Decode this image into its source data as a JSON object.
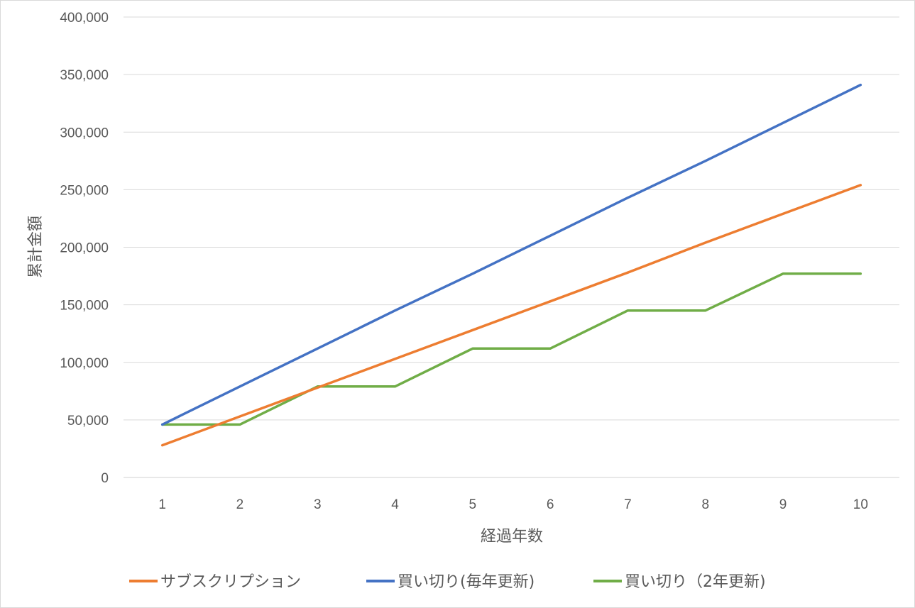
{
  "chart_data": {
    "type": "line",
    "title": "",
    "xlabel": "経過年数",
    "ylabel": "累計金額",
    "categories": [
      "1",
      "2",
      "3",
      "4",
      "5",
      "6",
      "7",
      "8",
      "9",
      "10"
    ],
    "ylim": [
      0,
      400000
    ],
    "yticks": [
      0,
      50000,
      100000,
      150000,
      200000,
      250000,
      300000,
      350000,
      400000
    ],
    "ytick_labels": [
      "0",
      "50,000",
      "100,000",
      "150,000",
      "200,000",
      "250,000",
      "300,000",
      "350,000",
      "400,000"
    ],
    "grid": true,
    "legend_position": "bottom",
    "series": [
      {
        "name": "サブスクリプション",
        "color": "#ED7D31",
        "values": [
          28000,
          53000,
          78000,
          103000,
          128000,
          153000,
          178000,
          204000,
          229000,
          254000
        ]
      },
      {
        "name": "買い切り(毎年更新)",
        "color": "#4472C4",
        "values": [
          46000,
          79000,
          112000,
          145000,
          177000,
          210000,
          243000,
          275000,
          308000,
          341000
        ]
      },
      {
        "name": "買い切り（2年更新)",
        "color": "#70AD47",
        "values": [
          46000,
          46000,
          79000,
          79000,
          112000,
          112000,
          145000,
          145000,
          177000,
          177000
        ]
      }
    ]
  }
}
